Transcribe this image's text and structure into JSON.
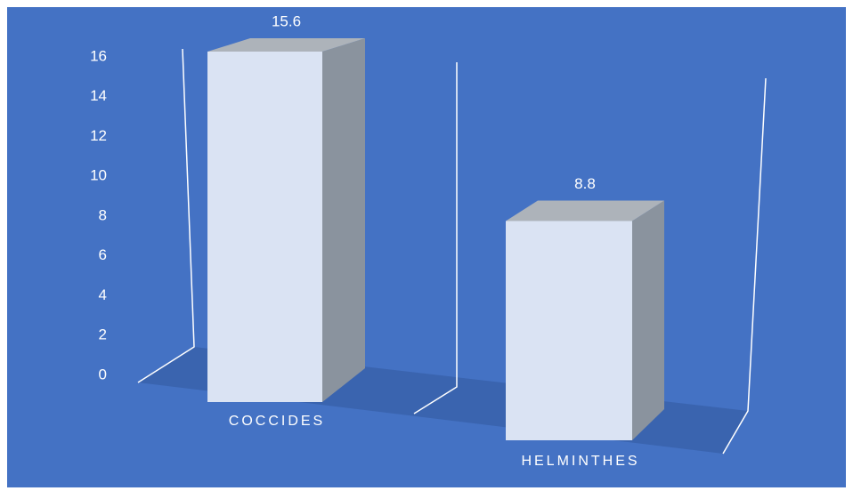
{
  "chart_data": {
    "type": "bar3d",
    "categories": [
      "COCCIDES",
      "HELMINTHES"
    ],
    "values": [
      15.6,
      8.8
    ],
    "ylim": [
      0,
      16
    ],
    "yticks": [
      0,
      2,
      4,
      6,
      8,
      10,
      12,
      14,
      16
    ],
    "color": "#dae3f3",
    "grid": false
  }
}
